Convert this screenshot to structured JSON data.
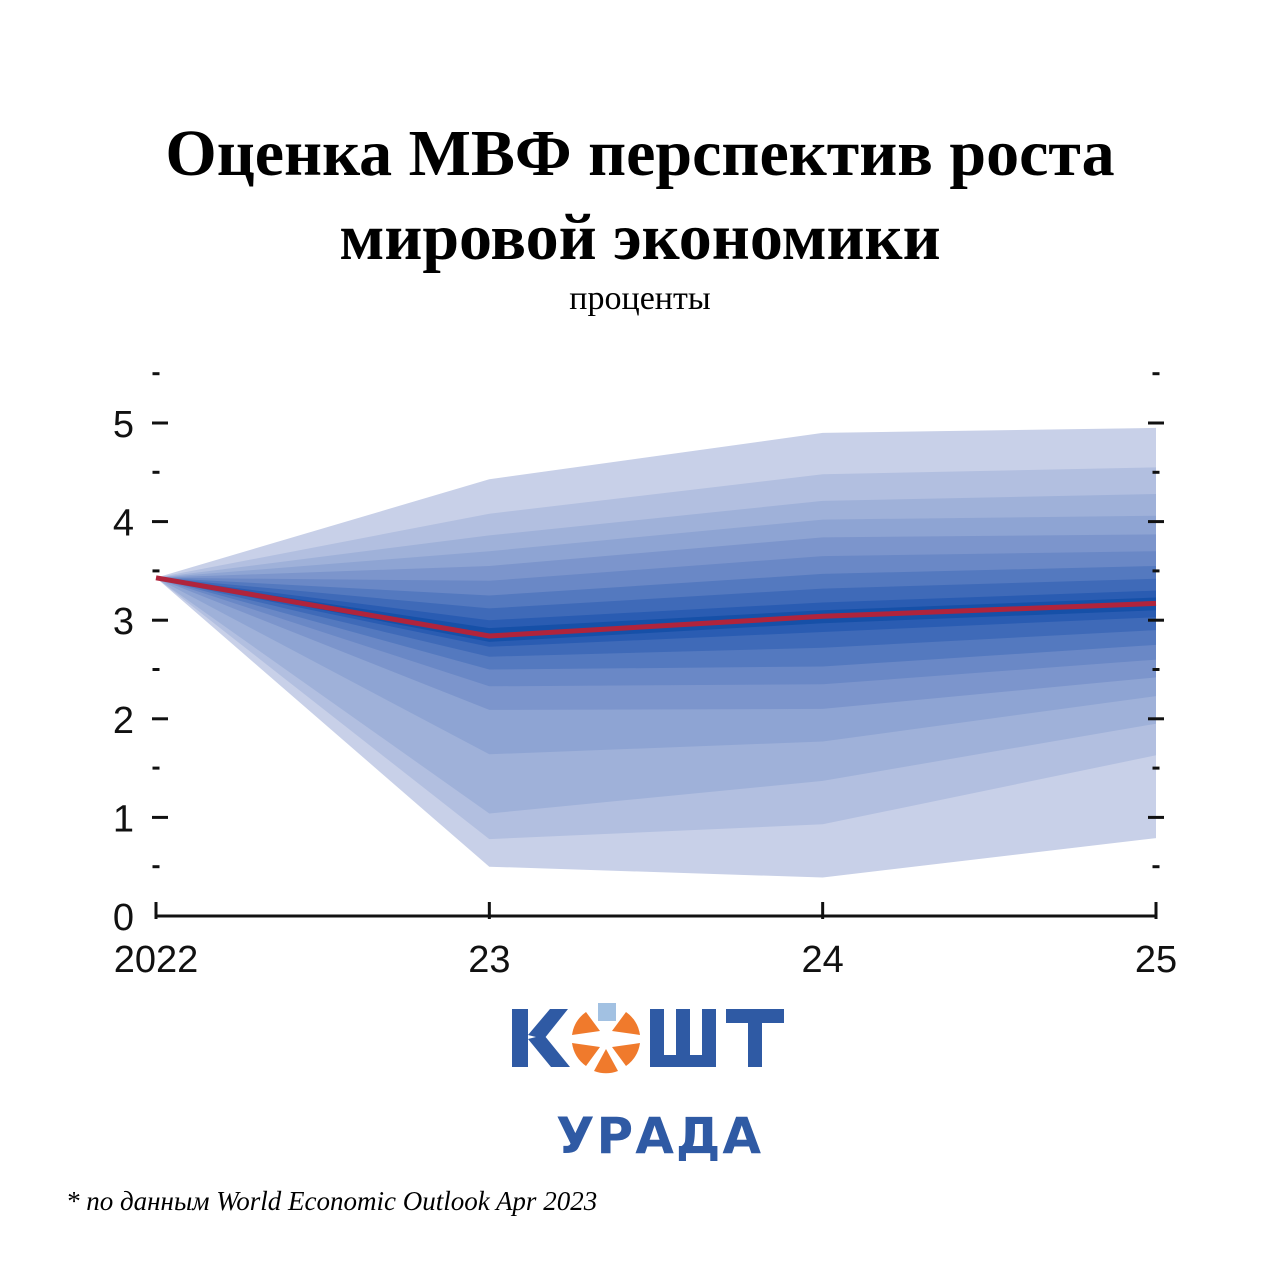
{
  "header": {
    "title_line1": "Оценка МВФ перспектив роста",
    "title_line2": "мировой экономики",
    "subtitle": "проценты"
  },
  "chart_data": {
    "type": "area",
    "title": "Оценка МВФ перспектив роста мировой экономики",
    "subtitle": "проценты",
    "x_tick_labels": [
      "2022",
      "23",
      "24",
      "25"
    ],
    "x": [
      2022,
      2023,
      2024,
      2025
    ],
    "ylim": [
      0,
      5.5
    ],
    "y_ticks": [
      0,
      1,
      2,
      3,
      4,
      5
    ],
    "median": {
      "name": "",
      "values": [
        3.43,
        2.84,
        3.04,
        3.17
      ],
      "color": "#b0243c"
    },
    "fan_bands": [
      {
        "upper": [
          3.43,
          4.43,
          4.9,
          4.95
        ],
        "lower": [
          3.43,
          0.5,
          0.39,
          0.79
        ],
        "color": "#c8d0e8"
      },
      {
        "upper": [
          3.43,
          4.08,
          4.48,
          4.55
        ],
        "lower": [
          3.43,
          0.78,
          0.93,
          1.63
        ],
        "color": "#b2bfe0"
      },
      {
        "upper": [
          3.43,
          3.86,
          4.21,
          4.28
        ],
        "lower": [
          3.43,
          1.04,
          1.37,
          1.95
        ],
        "color": "#9fb1d9"
      },
      {
        "upper": [
          3.43,
          3.7,
          4.02,
          4.06
        ],
        "lower": [
          3.43,
          1.64,
          1.77,
          2.23
        ],
        "color": "#8ea4d3"
      },
      {
        "upper": [
          3.43,
          3.55,
          3.84,
          3.87
        ],
        "lower": [
          3.43,
          2.09,
          2.1,
          2.42
        ],
        "color": "#7c95cc"
      },
      {
        "upper": [
          3.43,
          3.4,
          3.65,
          3.7
        ],
        "lower": [
          3.43,
          2.33,
          2.35,
          2.6
        ],
        "color": "#6a88c6"
      },
      {
        "upper": [
          3.43,
          3.25,
          3.47,
          3.55
        ],
        "lower": [
          3.43,
          2.5,
          2.53,
          2.75
        ],
        "color": "#5479bf"
      },
      {
        "upper": [
          3.43,
          3.12,
          3.32,
          3.42
        ],
        "lower": [
          3.43,
          2.63,
          2.72,
          2.9
        ],
        "color": "#3f6ab8"
      },
      {
        "upper": [
          3.43,
          3.0,
          3.18,
          3.3
        ],
        "lower": [
          3.43,
          2.73,
          2.88,
          3.03
        ],
        "color": "#2a5cb2"
      },
      {
        "upper": [
          3.43,
          2.92,
          3.1,
          3.23
        ],
        "lower": [
          3.43,
          2.78,
          2.97,
          3.1
        ],
        "color": "#1650a8"
      }
    ]
  },
  "logo": {
    "word_top": "КОШТ",
    "word_bottom": "УРАДА",
    "colors": {
      "blue": "#2f5aa4",
      "orange": "#f07a2c"
    }
  },
  "footnote": "* по данным World Economic Outlook Apr 2023"
}
